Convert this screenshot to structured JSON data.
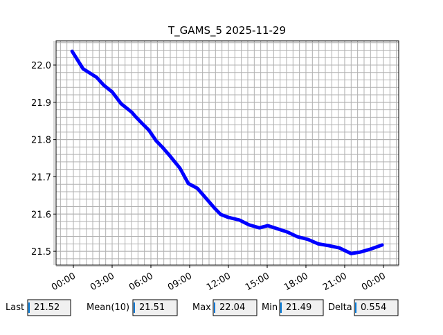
{
  "chart_data": {
    "type": "line",
    "title": "T_GAMS_5 2025-11-29",
    "x": [
      -0.1,
      0.75,
      1.8,
      2.35,
      3,
      3.7,
      4.5,
      4.8,
      5.3,
      5.85,
      6.4,
      6.9,
      7.45,
      8.25,
      8.9,
      9.6,
      10.3,
      10.9,
      11.4,
      12,
      12.85,
      13.6,
      14.4,
      15.05,
      15.75,
      16.55,
      17.35,
      18.15,
      18.95,
      19.8,
      20.6,
      21.5,
      22.2,
      23,
      23.9
    ],
    "series": [
      {
        "color": "#0000ff",
        "values": [
          22.037,
          21.99,
          21.967,
          21.946,
          21.928,
          21.896,
          21.874,
          21.862,
          21.844,
          21.825,
          21.797,
          21.779,
          21.757,
          21.723,
          21.682,
          21.669,
          21.641,
          21.617,
          21.599,
          21.591,
          21.584,
          21.571,
          21.563,
          21.569,
          21.561,
          21.552,
          21.539,
          21.532,
          21.52,
          21.515,
          21.509,
          21.494,
          21.498,
          21.506,
          21.517
        ]
      }
    ],
    "xlim": [
      -1.34,
      25.18
    ],
    "xticks": [
      {
        "value": 0,
        "label": "00:00"
      },
      {
        "value": 3,
        "label": "03:00"
      },
      {
        "value": 6,
        "label": "06:00"
      },
      {
        "value": 9,
        "label": "09:00"
      },
      {
        "value": 12,
        "label": "12:00"
      },
      {
        "value": 15,
        "label": "15:00"
      },
      {
        "value": 18,
        "label": "18:00"
      },
      {
        "value": 21,
        "label": "21:00"
      },
      {
        "value": 24,
        "label": "00:00"
      }
    ],
    "ylim": [
      21.463,
      22.065
    ],
    "yticks": [
      21.5,
      21.6,
      21.7,
      21.8,
      21.9,
      {
        "value": 22.0,
        "label": "22.0"
      }
    ],
    "grid": true
  },
  "stats": [
    {
      "label": "Last",
      "value": 21.52
    },
    {
      "label": "Mean(10)",
      "value": 21.51
    },
    {
      "label": "Max",
      "value": 22.04
    },
    {
      "label": "Min",
      "value": 21.49
    },
    {
      "label": "Delta",
      "value": 0.554
    }
  ]
}
